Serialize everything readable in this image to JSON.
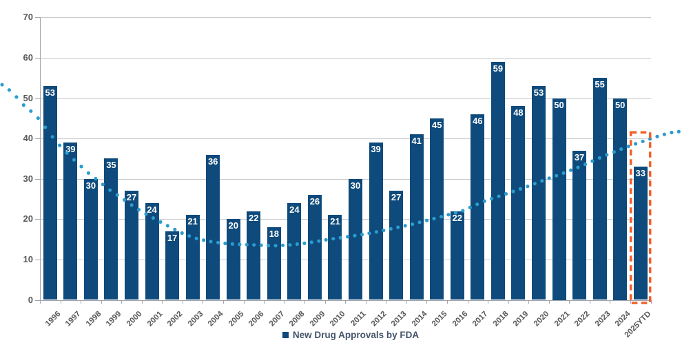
{
  "chart_data": {
    "type": "bar",
    "title": "",
    "legend_label": "New Drug Approvals by FDA",
    "legend_position": "bottom",
    "categories": [
      "1996",
      "1997",
      "1998",
      "1999",
      "2000",
      "2001",
      "2002",
      "2003",
      "2004",
      "2005",
      "2006",
      "2007",
      "2008",
      "2009",
      "2010",
      "2011",
      "2012",
      "2013",
      "2014",
      "2015",
      "2016",
      "2017",
      "2018",
      "2019",
      "2020",
      "2021",
      "2022",
      "2023",
      "2024",
      "2025YTD"
    ],
    "values": [
      53,
      39,
      30,
      35,
      27,
      24,
      17,
      21,
      36,
      20,
      22,
      18,
      24,
      26,
      21,
      30,
      39,
      27,
      41,
      45,
      22,
      46,
      59,
      48,
      53,
      50,
      37,
      55,
      50,
      33
    ],
    "ylim": [
      0,
      70
    ],
    "yticks": [
      0,
      10,
      20,
      30,
      40,
      50,
      60,
      70
    ],
    "grid": "horizontal",
    "bar_label_position": "inside-top",
    "highlight_box": {
      "category": "2025YTD",
      "top_value": 41.5,
      "style": "dashed"
    },
    "trendline": {
      "style": "dotted",
      "samples_x_frac_value": [
        [
          0.0,
          53.7
        ],
        [
          0.013,
          52.1
        ],
        [
          0.023,
          50.5
        ],
        [
          0.033,
          48.5
        ],
        [
          0.044,
          47.0
        ],
        [
          0.054,
          45.4
        ],
        [
          0.063,
          43.6
        ],
        [
          0.07,
          41.9
        ],
        [
          0.084,
          38.9
        ],
        [
          0.101,
          35.9
        ],
        [
          0.127,
          31.8
        ],
        [
          0.145,
          29.4
        ],
        [
          0.162,
          27.1
        ],
        [
          0.179,
          25.2
        ],
        [
          0.197,
          23.0
        ],
        [
          0.215,
          21.2
        ],
        [
          0.233,
          19.5
        ],
        [
          0.252,
          17.8
        ],
        [
          0.27,
          16.3
        ],
        [
          0.288,
          15.2
        ],
        [
          0.306,
          14.5
        ],
        [
          0.324,
          14.1
        ],
        [
          0.343,
          13.8
        ],
        [
          0.361,
          13.7
        ],
        [
          0.401,
          13.4
        ],
        [
          0.424,
          13.6
        ],
        [
          0.451,
          14.1
        ],
        [
          0.482,
          15.0
        ],
        [
          0.512,
          15.7
        ],
        [
          0.542,
          16.5
        ],
        [
          0.576,
          17.7
        ],
        [
          0.606,
          18.8
        ],
        [
          0.64,
          20.3
        ],
        [
          0.679,
          22.1
        ],
        [
          0.709,
          24.4
        ],
        [
          0.739,
          26.1
        ],
        [
          0.77,
          27.9
        ],
        [
          0.801,
          29.9
        ],
        [
          0.823,
          31.2
        ],
        [
          0.853,
          33.2
        ],
        [
          0.886,
          35.7
        ],
        [
          0.919,
          37.9
        ],
        [
          0.941,
          39.2
        ],
        [
          0.962,
          40.4
        ],
        [
          0.982,
          41.4
        ],
        [
          1.0,
          41.8
        ]
      ]
    }
  },
  "colors": {
    "background": "#FFFFFF",
    "bar": "#0E4A7B",
    "bar_label": "#FFFFFF",
    "grid": "#C9C9C9",
    "axis": "#A0A4AA",
    "tick_label": "#595959",
    "legend_text": "#44546A",
    "trend": "#2B9CCE",
    "highlight": "#F2602A"
  }
}
